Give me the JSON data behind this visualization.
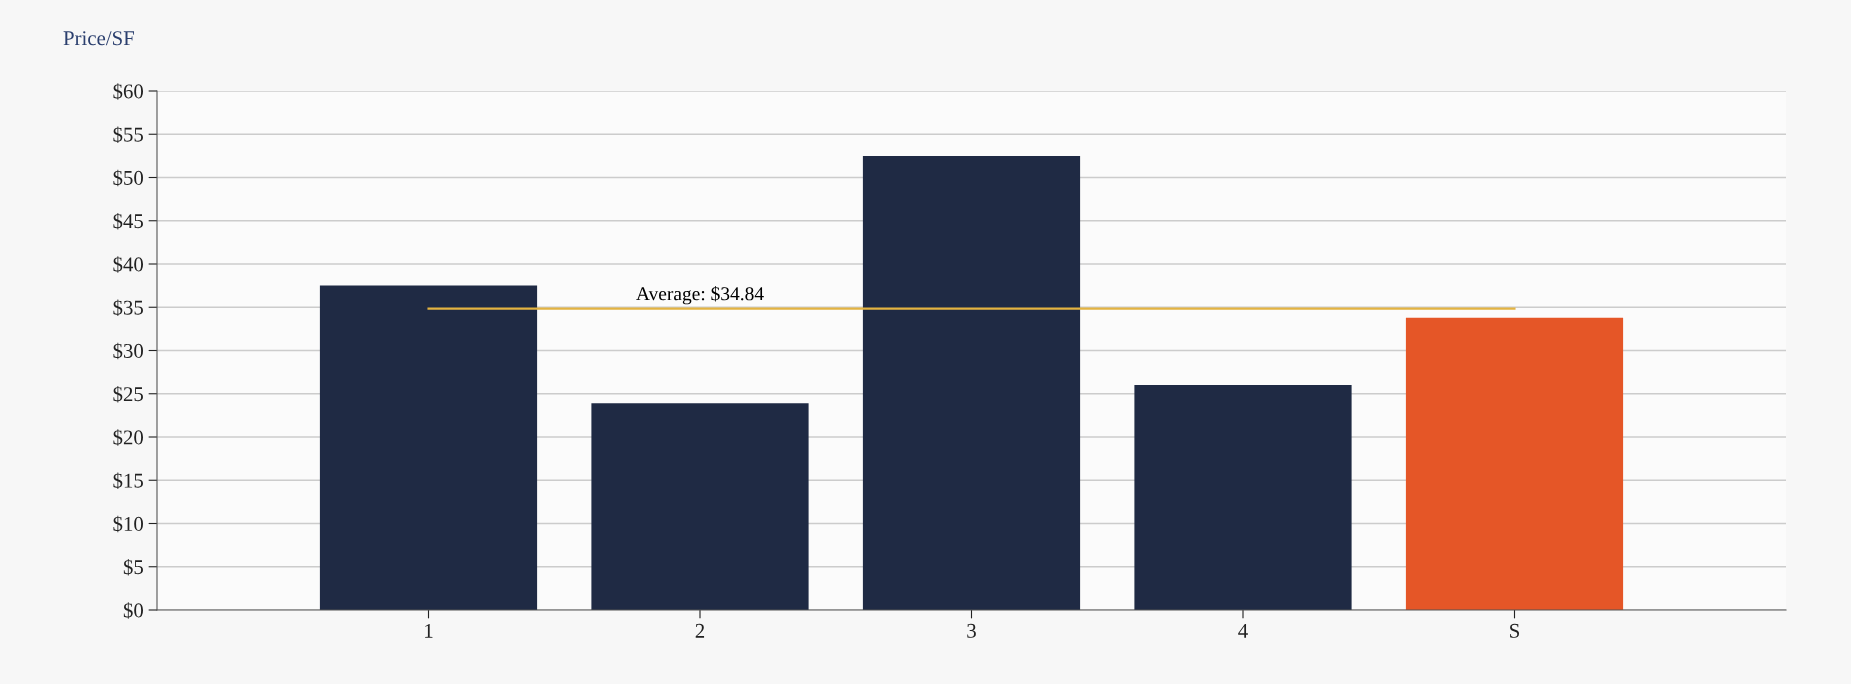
{
  "chart_data": {
    "type": "bar",
    "ylabel": "Price/SF",
    "categories": [
      "1",
      "2",
      "3",
      "4",
      "S"
    ],
    "values": [
      37.5,
      23.9,
      52.5,
      26.0,
      33.8
    ],
    "colors": [
      "#1f2a44",
      "#1f2a44",
      "#1f2a44",
      "#1f2a44",
      "#e55627"
    ],
    "ylim": [
      0,
      60
    ],
    "yticks": [
      {
        "value": 0,
        "label": "$0"
      },
      {
        "value": 5,
        "label": "$5"
      },
      {
        "value": 10,
        "label": "$10"
      },
      {
        "value": 15,
        "label": "$15"
      },
      {
        "value": 20,
        "label": "$20"
      },
      {
        "value": 25,
        "label": "$25"
      },
      {
        "value": 30,
        "label": "$30"
      },
      {
        "value": 35,
        "label": "$35"
      },
      {
        "value": 40,
        "label": "$40"
      },
      {
        "value": 45,
        "label": "$45"
      },
      {
        "value": 50,
        "label": "$50"
      },
      {
        "value": 55,
        "label": "$55"
      },
      {
        "value": 60,
        "label": "$60"
      }
    ],
    "grid": "y",
    "ref_lines": [
      {
        "axis": "y",
        "value": 34.84,
        "label": "Average: $34.84",
        "color": "#e3b341"
      }
    ]
  }
}
